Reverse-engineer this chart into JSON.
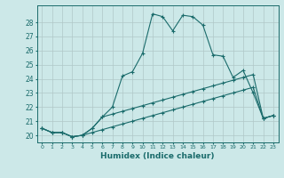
{
  "xlabel": "Humidex (Indice chaleur)",
  "background_color": "#cce8e8",
  "line_color": "#1a6b6b",
  "grid_color": "#b0c8c8",
  "xlim": [
    -0.5,
    23.5
  ],
  "ylim": [
    19.5,
    29.2
  ],
  "xticks": [
    0,
    1,
    2,
    3,
    4,
    5,
    6,
    7,
    8,
    9,
    10,
    11,
    12,
    13,
    14,
    15,
    16,
    17,
    18,
    19,
    20,
    21,
    22,
    23
  ],
  "yticks": [
    20,
    21,
    22,
    23,
    24,
    25,
    26,
    27,
    28
  ],
  "series1_x": [
    0,
    1,
    2,
    3,
    4,
    5,
    6,
    7,
    8,
    9,
    10,
    11,
    12,
    13,
    14,
    15,
    16,
    17,
    18,
    19,
    20,
    21,
    22,
    23
  ],
  "series1_y": [
    20.5,
    20.2,
    20.2,
    19.9,
    20.0,
    20.5,
    21.3,
    22.0,
    24.2,
    24.5,
    25.8,
    28.6,
    28.4,
    27.4,
    28.5,
    28.4,
    27.8,
    25.7,
    25.6,
    24.1,
    24.6,
    23.0,
    21.2,
    21.4
  ],
  "series2_x": [
    0,
    1,
    2,
    3,
    4,
    5,
    6,
    7,
    8,
    9,
    10,
    11,
    12,
    13,
    14,
    15,
    16,
    17,
    18,
    19,
    20,
    21,
    22,
    23
  ],
  "series2_y": [
    20.5,
    20.2,
    20.2,
    19.9,
    20.0,
    20.5,
    21.3,
    21.5,
    21.7,
    21.9,
    22.1,
    22.3,
    22.5,
    22.7,
    22.9,
    23.1,
    23.3,
    23.5,
    23.7,
    23.9,
    24.1,
    24.3,
    21.2,
    21.4
  ],
  "series3_x": [
    0,
    1,
    2,
    3,
    4,
    5,
    6,
    7,
    8,
    9,
    10,
    11,
    12,
    13,
    14,
    15,
    16,
    17,
    18,
    19,
    20,
    21,
    22,
    23
  ],
  "series3_y": [
    20.5,
    20.2,
    20.2,
    19.9,
    20.0,
    20.2,
    20.4,
    20.6,
    20.8,
    21.0,
    21.2,
    21.4,
    21.6,
    21.8,
    22.0,
    22.2,
    22.4,
    22.6,
    22.8,
    23.0,
    23.2,
    23.4,
    21.2,
    21.4
  ]
}
